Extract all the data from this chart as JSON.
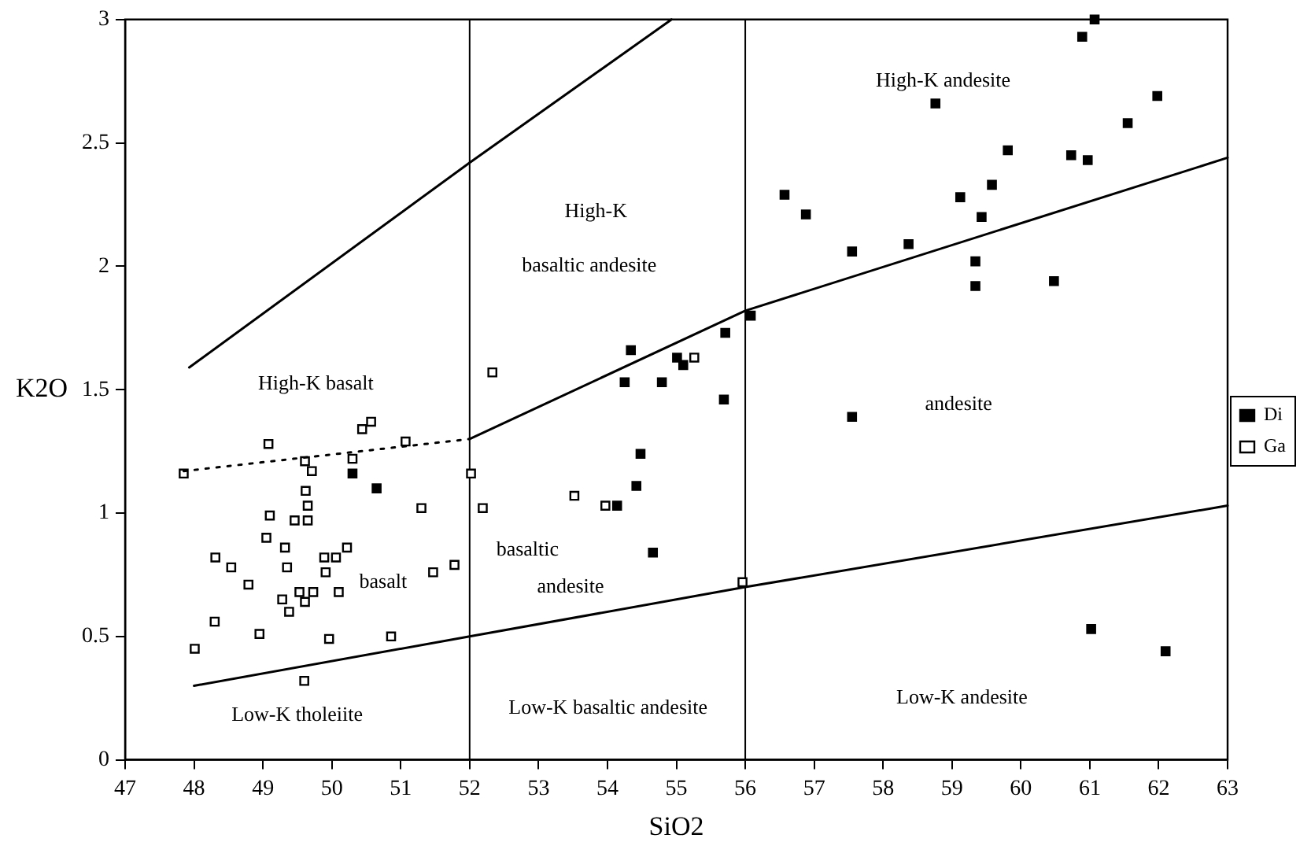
{
  "chart_data": {
    "type": "scatter",
    "xlabel": "SiO2",
    "ylabel": "K2O",
    "xlim": [
      47,
      63
    ],
    "xticks": [
      47,
      48,
      49,
      50,
      51,
      52,
      53,
      54,
      55,
      56,
      57,
      58,
      59,
      60,
      61,
      62,
      63
    ],
    "ylim": [
      0,
      3
    ],
    "yticks": [
      0,
      0.5,
      1,
      1.5,
      2,
      2.5,
      3
    ],
    "grid": false,
    "legend": "right",
    "marker": "square",
    "series": [
      {
        "type": "line",
        "color": "#000000",
        "marker": "none",
        "line_style": "solid",
        "x": [
          47.93,
          52,
          54.93
        ],
        "values": [
          1.59,
          2.42,
          3.0
        ]
      },
      {
        "type": "line",
        "color": "#000000",
        "marker": "none",
        "line_style": "dotted",
        "x": [
          47.85,
          52
        ],
        "values": [
          1.17,
          1.3
        ]
      },
      {
        "type": "line",
        "color": "#000000",
        "marker": "none",
        "line_style": "solid",
        "x": [
          52,
          56,
          63
        ],
        "values": [
          1.3,
          1.82,
          2.44
        ]
      },
      {
        "type": "line",
        "color": "#000000",
        "marker": "none",
        "line_style": "solid",
        "x": [
          48,
          52,
          56,
          63
        ],
        "values": [
          0.3,
          0.5,
          0.7,
          1.03
        ]
      },
      {
        "type": "scatter",
        "name": "Di",
        "color": "#000000",
        "x": [
          50.3,
          50.65,
          54.14,
          54.42,
          54.48,
          54.66,
          54.25,
          54.79,
          54.34,
          55.01,
          55.1,
          55.69,
          61.07,
          60.89,
          58.76,
          61.98,
          61.55,
          59.81,
          60.73,
          60.97,
          56.57,
          56.88,
          59.12,
          59.58,
          59.43,
          57.55,
          58.37,
          59.34,
          59.34,
          60.48,
          56.08,
          55.71,
          57.55,
          61.02,
          62.1
        ],
        "values": [
          1.16,
          1.1,
          1.03,
          1.11,
          1.24,
          0.84,
          1.53,
          1.53,
          1.66,
          1.63,
          1.6,
          1.46,
          3.0,
          2.93,
          2.66,
          2.69,
          2.58,
          2.47,
          2.45,
          2.43,
          2.29,
          2.21,
          2.28,
          2.33,
          2.2,
          2.06,
          2.09,
          2.02,
          1.92,
          1.94,
          1.8,
          1.73,
          1.39,
          0.53,
          0.44
        ]
      },
      {
        "type": "scatter",
        "name": "Ga",
        "color": "#ffffff",
        "x": [
          47.85,
          49.08,
          49.61,
          49.71,
          50.3,
          50.44,
          50.57,
          51.07,
          51.3,
          49.62,
          49.65,
          49.1,
          49.46,
          49.65,
          49.05,
          49.32,
          48.31,
          48.54,
          48.79,
          49.35,
          49.89,
          50.06,
          50.22,
          49.91,
          49.28,
          49.53,
          49.73,
          49.61,
          49.38,
          50.1,
          48.3,
          48.95,
          49.96,
          50.86,
          48.01,
          51.47,
          51.78,
          49.6,
          52.33,
          52.02,
          52.19,
          53.52,
          53.97,
          55.26,
          55.96
        ],
        "values": [
          1.16,
          1.28,
          1.21,
          1.17,
          1.22,
          1.34,
          1.37,
          1.29,
          1.02,
          1.09,
          1.03,
          0.99,
          0.97,
          0.97,
          0.9,
          0.86,
          0.82,
          0.78,
          0.71,
          0.78,
          0.82,
          0.82,
          0.86,
          0.76,
          0.65,
          0.68,
          0.68,
          0.64,
          0.6,
          0.68,
          0.56,
          0.51,
          0.49,
          0.5,
          0.45,
          0.76,
          0.79,
          0.32,
          1.57,
          1.16,
          1.02,
          1.07,
          1.03,
          1.63,
          0.72
        ]
      }
    ],
    "ref_lines": [
      {
        "axis": "x",
        "value": 52
      },
      {
        "axis": "x",
        "value": 56
      }
    ],
    "annotations": [
      "High-K andesite",
      "High-K",
      "basaltic andesite",
      "High-K basalt",
      "basalt",
      "basaltic",
      "andesite",
      "andesite",
      "Low-K andesite",
      "Low-K basaltic andesite",
      "Low-K tholeiite"
    ]
  }
}
